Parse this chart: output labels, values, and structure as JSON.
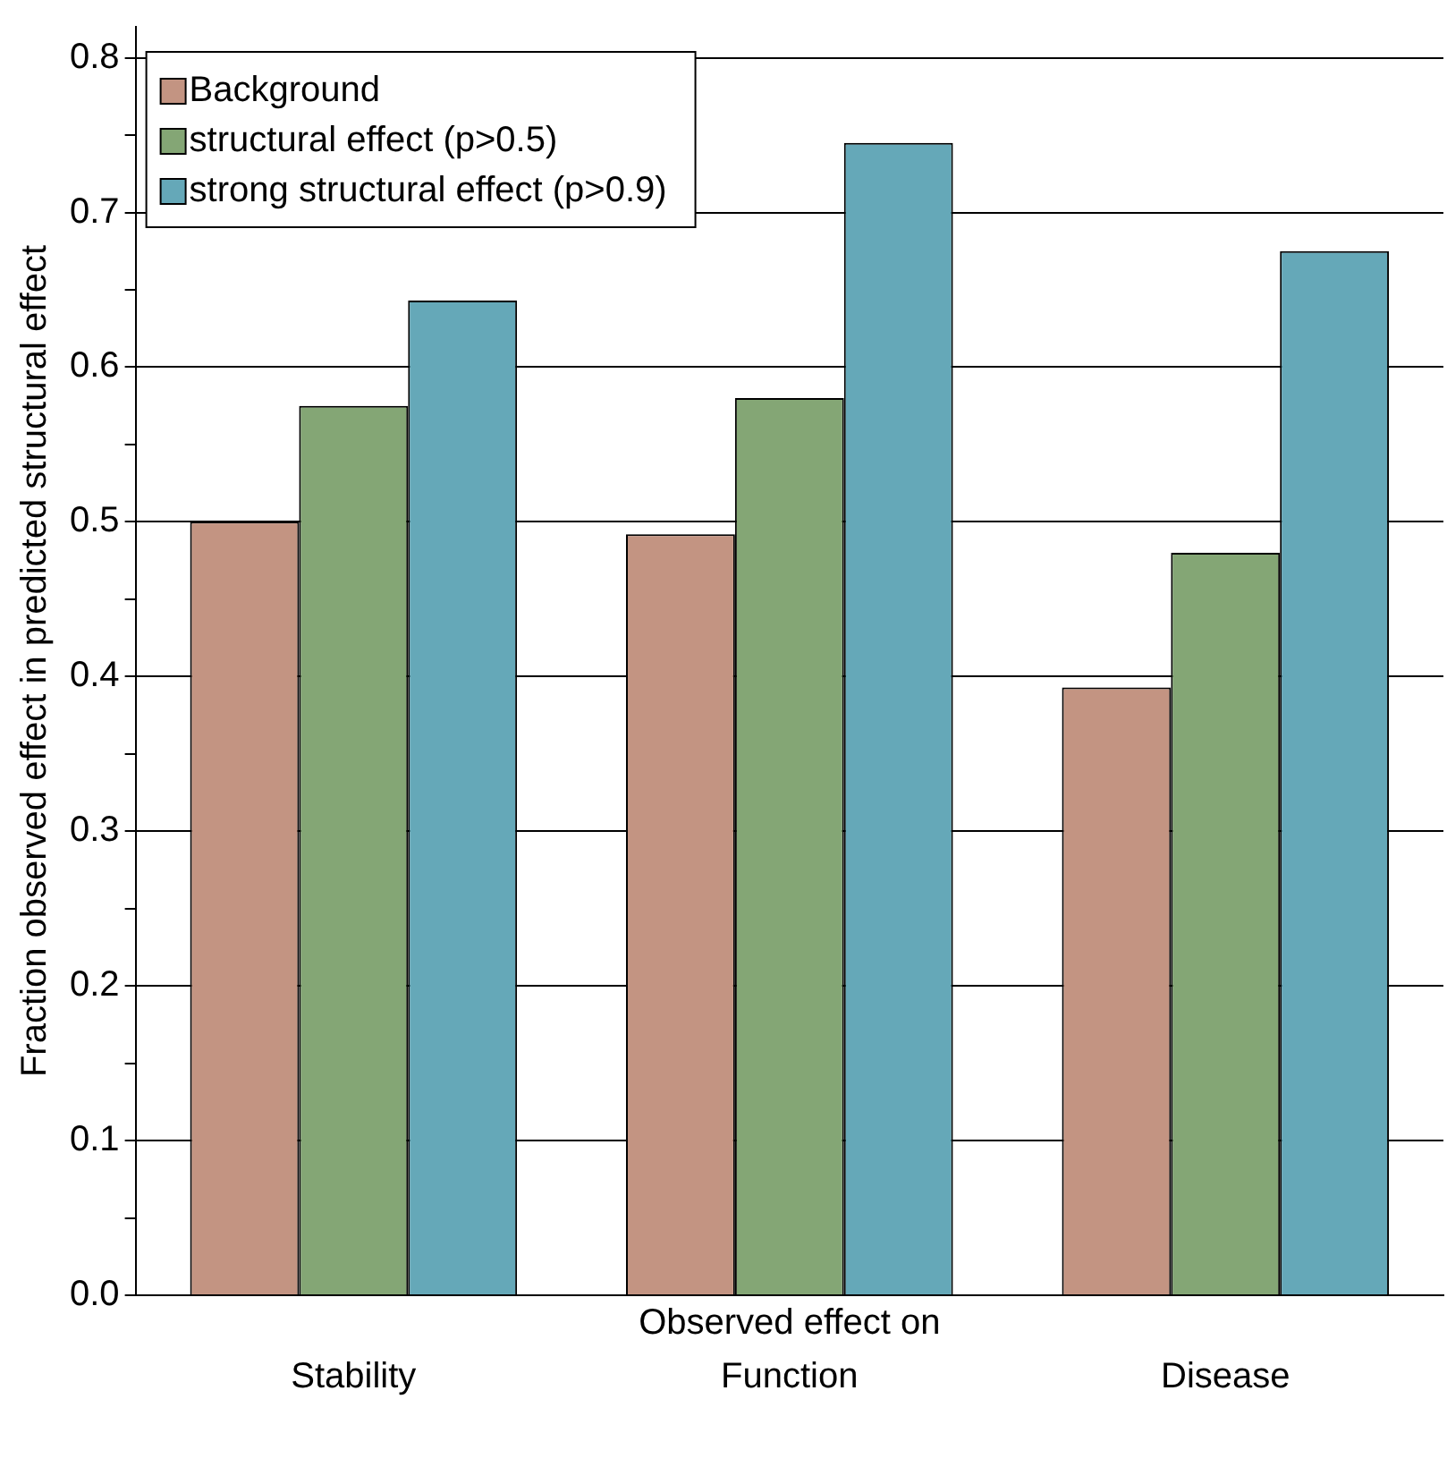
{
  "chart_data": {
    "type": "bar",
    "xlabel": "Observed effect on",
    "ylabel": "Fraction observed effect in predicted structural effect",
    "categories": [
      "Stability",
      "Function",
      "Disease"
    ],
    "series": [
      {
        "name": "Background",
        "color": "#c39482",
        "values": [
          0.5,
          0.492,
          0.393
        ]
      },
      {
        "name": "structural effect (p>0.5)",
        "color": "#84a675",
        "values": [
          0.575,
          0.58,
          0.48
        ]
      },
      {
        "name": "strong structural effect (p>0.9)",
        "color": "#65a8b8",
        "values": [
          0.643,
          0.745,
          0.675
        ]
      }
    ],
    "ylim": [
      0,
      0.82
    ],
    "yticks": [
      {
        "value": 0,
        "label": "0.0"
      },
      {
        "value": 0.05,
        "label": null
      },
      {
        "value": 0.1,
        "label": "0.1"
      },
      {
        "value": 0.15,
        "label": null
      },
      {
        "value": 0.2,
        "label": "0.2"
      },
      {
        "value": 0.25,
        "label": null
      },
      {
        "value": 0.3,
        "label": "0.3"
      },
      {
        "value": 0.35,
        "label": null
      },
      {
        "value": 0.4,
        "label": "0.4"
      },
      {
        "value": 0.45,
        "label": null
      },
      {
        "value": 0.5,
        "label": "0.5"
      },
      {
        "value": 0.55,
        "label": null
      },
      {
        "value": 0.6,
        "label": "0.6"
      },
      {
        "value": 0.65,
        "label": null
      },
      {
        "value": 0.7,
        "label": "0.7"
      },
      {
        "value": 0.75,
        "label": null
      },
      {
        "value": 0.8,
        "label": "0.8"
      }
    ],
    "grid": "y",
    "legend": "top left"
  }
}
